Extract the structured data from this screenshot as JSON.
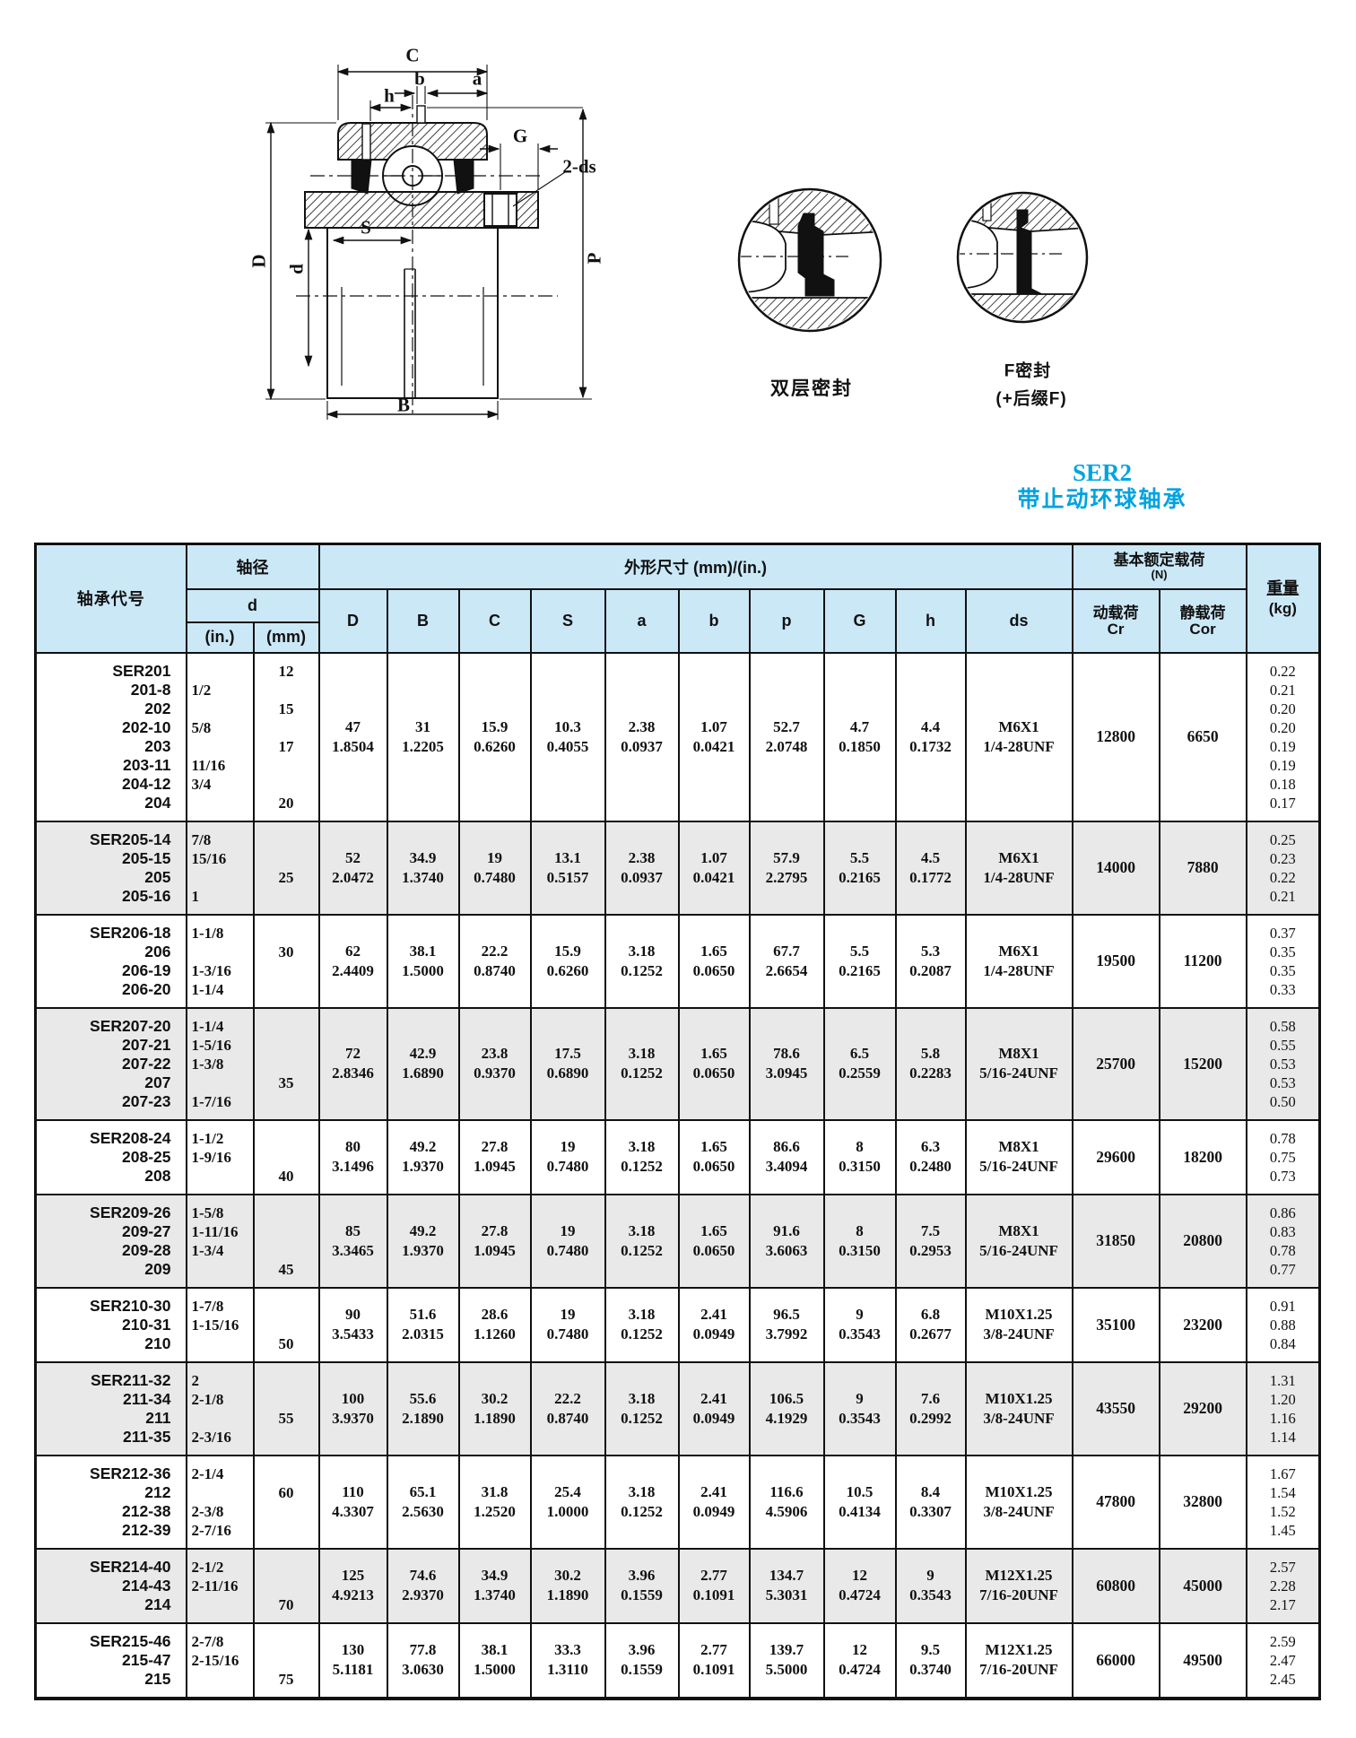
{
  "title": {
    "line1": "SER2",
    "line2": "带止动环球轴承",
    "color": "#00a3e0"
  },
  "drawing": {
    "labels": {
      "C": "C",
      "b": "b",
      "a": "a",
      "h": "h",
      "G": "G",
      "ds2": "2-ds",
      "D": "D",
      "d": "d",
      "S": "S",
      "P": "P",
      "B": "B"
    },
    "detail1_caption": "双层密封",
    "detail2_caption_line1": "F密封",
    "detail2_caption_line2": "(+后缀F)"
  },
  "table": {
    "header": {
      "bearing_code": "轴承代号",
      "shaft_dia": "轴径",
      "d": "d",
      "in": "(in.)",
      "mm": "(mm)",
      "dims": "外形尺寸 (mm)/(in.)",
      "dim_cols": [
        "D",
        "B",
        "C",
        "S",
        "a",
        "b",
        "p",
        "G",
        "h",
        "ds"
      ],
      "load_line1": "基本额定载荷",
      "load_line2": "(N)",
      "cr_line1": "动载荷",
      "cr_line2": "Cr",
      "cor_line1": "静载荷",
      "cor_line2": "Cor",
      "weight_line1": "重量",
      "weight_line2": "(kg)"
    },
    "dim_order": [
      "D",
      "B",
      "C",
      "S",
      "a",
      "b",
      "p",
      "G",
      "h",
      "ds"
    ],
    "groups": [
      {
        "shaded": false,
        "codes": [
          "SER201",
          "201-8",
          "202",
          "202-10",
          "203",
          "203-11",
          "204-12",
          "204"
        ],
        "inches": [
          "",
          "1/2",
          "",
          "5/8",
          "",
          "11/16",
          "3/4",
          ""
        ],
        "mm": [
          "12",
          "",
          "15",
          "",
          "17",
          "",
          "",
          "20"
        ],
        "dims": {
          "D": [
            "47",
            "1.8504"
          ],
          "B": [
            "31",
            "1.2205"
          ],
          "C": [
            "15.9",
            "0.6260"
          ],
          "S": [
            "10.3",
            "0.4055"
          ],
          "a": [
            "2.38",
            "0.0937"
          ],
          "b": [
            "1.07",
            "0.0421"
          ],
          "p": [
            "52.7",
            "2.0748"
          ],
          "G": [
            "4.7",
            "0.1850"
          ],
          "h": [
            "4.4",
            "0.1732"
          ],
          "ds": [
            "M6X1",
            "1/4-28UNF"
          ]
        },
        "cr": "12800",
        "cor": "6650",
        "weights": [
          "0.22",
          "0.21",
          "0.20",
          "0.20",
          "0.19",
          "0.19",
          "0.18",
          "0.17"
        ]
      },
      {
        "shaded": true,
        "codes": [
          "SER205-14",
          "205-15",
          "205",
          "205-16"
        ],
        "inches": [
          "7/8",
          "15/16",
          "",
          "1"
        ],
        "mm": [
          "",
          "",
          "25",
          ""
        ],
        "dims": {
          "D": [
            "52",
            "2.0472"
          ],
          "B": [
            "34.9",
            "1.3740"
          ],
          "C": [
            "19",
            "0.7480"
          ],
          "S": [
            "13.1",
            "0.5157"
          ],
          "a": [
            "2.38",
            "0.0937"
          ],
          "b": [
            "1.07",
            "0.0421"
          ],
          "p": [
            "57.9",
            "2.2795"
          ],
          "G": [
            "5.5",
            "0.2165"
          ],
          "h": [
            "4.5",
            "0.1772"
          ],
          "ds": [
            "M6X1",
            "1/4-28UNF"
          ]
        },
        "cr": "14000",
        "cor": "7880",
        "weights": [
          "0.25",
          "0.23",
          "0.22",
          "0.21"
        ]
      },
      {
        "shaded": false,
        "codes": [
          "SER206-18",
          "206",
          "206-19",
          "206-20"
        ],
        "inches": [
          "1-1/8",
          "",
          "1-3/16",
          "1-1/4"
        ],
        "mm": [
          "",
          "30",
          "",
          ""
        ],
        "dims": {
          "D": [
            "62",
            "2.4409"
          ],
          "B": [
            "38.1",
            "1.5000"
          ],
          "C": [
            "22.2",
            "0.8740"
          ],
          "S": [
            "15.9",
            "0.6260"
          ],
          "a": [
            "3.18",
            "0.1252"
          ],
          "b": [
            "1.65",
            "0.0650"
          ],
          "p": [
            "67.7",
            "2.6654"
          ],
          "G": [
            "5.5",
            "0.2165"
          ],
          "h": [
            "5.3",
            "0.2087"
          ],
          "ds": [
            "M6X1",
            "1/4-28UNF"
          ]
        },
        "cr": "19500",
        "cor": "11200",
        "weights": [
          "0.37",
          "0.35",
          "0.35",
          "0.33"
        ]
      },
      {
        "shaded": true,
        "codes": [
          "SER207-20",
          "207-21",
          "207-22",
          "207",
          "207-23"
        ],
        "inches": [
          "1-1/4",
          "1-5/16",
          "1-3/8",
          "",
          "1-7/16"
        ],
        "mm": [
          "",
          "",
          "",
          "35",
          ""
        ],
        "dims": {
          "D": [
            "72",
            "2.8346"
          ],
          "B": [
            "42.9",
            "1.6890"
          ],
          "C": [
            "23.8",
            "0.9370"
          ],
          "S": [
            "17.5",
            "0.6890"
          ],
          "a": [
            "3.18",
            "0.1252"
          ],
          "b": [
            "1.65",
            "0.0650"
          ],
          "p": [
            "78.6",
            "3.0945"
          ],
          "G": [
            "6.5",
            "0.2559"
          ],
          "h": [
            "5.8",
            "0.2283"
          ],
          "ds": [
            "M8X1",
            "5/16-24UNF"
          ]
        },
        "cr": "25700",
        "cor": "15200",
        "weights": [
          "0.58",
          "0.55",
          "0.53",
          "0.53",
          "0.50"
        ]
      },
      {
        "shaded": false,
        "codes": [
          "SER208-24",
          "208-25",
          "208"
        ],
        "inches": [
          "1-1/2",
          "1-9/16",
          ""
        ],
        "mm": [
          "",
          "",
          "40"
        ],
        "dims": {
          "D": [
            "80",
            "3.1496"
          ],
          "B": [
            "49.2",
            "1.9370"
          ],
          "C": [
            "27.8",
            "1.0945"
          ],
          "S": [
            "19",
            "0.7480"
          ],
          "a": [
            "3.18",
            "0.1252"
          ],
          "b": [
            "1.65",
            "0.0650"
          ],
          "p": [
            "86.6",
            "3.4094"
          ],
          "G": [
            "8",
            "0.3150"
          ],
          "h": [
            "6.3",
            "0.2480"
          ],
          "ds": [
            "M8X1",
            "5/16-24UNF"
          ]
        },
        "cr": "29600",
        "cor": "18200",
        "weights": [
          "0.78",
          "0.75",
          "0.73"
        ]
      },
      {
        "shaded": true,
        "codes": [
          "SER209-26",
          "209-27",
          "209-28",
          "209"
        ],
        "inches": [
          "1-5/8",
          "1-11/16",
          "1-3/4",
          ""
        ],
        "mm": [
          "",
          "",
          "",
          "45"
        ],
        "dims": {
          "D": [
            "85",
            "3.3465"
          ],
          "B": [
            "49.2",
            "1.9370"
          ],
          "C": [
            "27.8",
            "1.0945"
          ],
          "S": [
            "19",
            "0.7480"
          ],
          "a": [
            "3.18",
            "0.1252"
          ],
          "b": [
            "1.65",
            "0.0650"
          ],
          "p": [
            "91.6",
            "3.6063"
          ],
          "G": [
            "8",
            "0.3150"
          ],
          "h": [
            "7.5",
            "0.2953"
          ],
          "ds": [
            "M8X1",
            "5/16-24UNF"
          ]
        },
        "cr": "31850",
        "cor": "20800",
        "weights": [
          "0.86",
          "0.83",
          "0.78",
          "0.77"
        ]
      },
      {
        "shaded": false,
        "codes": [
          "SER210-30",
          "210-31",
          "210"
        ],
        "inches": [
          "1-7/8",
          "1-15/16",
          ""
        ],
        "mm": [
          "",
          "",
          "50"
        ],
        "dims": {
          "D": [
            "90",
            "3.5433"
          ],
          "B": [
            "51.6",
            "2.0315"
          ],
          "C": [
            "28.6",
            "1.1260"
          ],
          "S": [
            "19",
            "0.7480"
          ],
          "a": [
            "3.18",
            "0.1252"
          ],
          "b": [
            "2.41",
            "0.0949"
          ],
          "p": [
            "96.5",
            "3.7992"
          ],
          "G": [
            "9",
            "0.3543"
          ],
          "h": [
            "6.8",
            "0.2677"
          ],
          "ds": [
            "M10X1.25",
            "3/8-24UNF"
          ]
        },
        "cr": "35100",
        "cor": "23200",
        "weights": [
          "0.91",
          "0.88",
          "0.84"
        ]
      },
      {
        "shaded": true,
        "codes": [
          "SER211-32",
          "211-34",
          "211",
          "211-35"
        ],
        "inches": [
          "2",
          "2-1/8",
          "",
          "2-3/16"
        ],
        "mm": [
          "",
          "",
          "55",
          ""
        ],
        "dims": {
          "D": [
            "100",
            "3.9370"
          ],
          "B": [
            "55.6",
            "2.1890"
          ],
          "C": [
            "30.2",
            "1.1890"
          ],
          "S": [
            "22.2",
            "0.8740"
          ],
          "a": [
            "3.18",
            "0.1252"
          ],
          "b": [
            "2.41",
            "0.0949"
          ],
          "p": [
            "106.5",
            "4.1929"
          ],
          "G": [
            "9",
            "0.3543"
          ],
          "h": [
            "7.6",
            "0.2992"
          ],
          "ds": [
            "M10X1.25",
            "3/8-24UNF"
          ]
        },
        "cr": "43550",
        "cor": "29200",
        "weights": [
          "1.31",
          "1.20",
          "1.16",
          "1.14"
        ]
      },
      {
        "shaded": false,
        "codes": [
          "SER212-36",
          "212",
          "212-38",
          "212-39"
        ],
        "inches": [
          "2-1/4",
          "",
          "2-3/8",
          "2-7/16"
        ],
        "mm": [
          "",
          "60",
          "",
          ""
        ],
        "dims": {
          "D": [
            "110",
            "4.3307"
          ],
          "B": [
            "65.1",
            "2.5630"
          ],
          "C": [
            "31.8",
            "1.2520"
          ],
          "S": [
            "25.4",
            "1.0000"
          ],
          "a": [
            "3.18",
            "0.1252"
          ],
          "b": [
            "2.41",
            "0.0949"
          ],
          "p": [
            "116.6",
            "4.5906"
          ],
          "G": [
            "10.5",
            "0.4134"
          ],
          "h": [
            "8.4",
            "0.3307"
          ],
          "ds": [
            "M10X1.25",
            "3/8-24UNF"
          ]
        },
        "cr": "47800",
        "cor": "32800",
        "weights": [
          "1.67",
          "1.54",
          "1.52",
          "1.45"
        ]
      },
      {
        "shaded": true,
        "codes": [
          "SER214-40",
          "214-43",
          "214"
        ],
        "inches": [
          "2-1/2",
          "2-11/16",
          ""
        ],
        "mm": [
          "",
          "",
          "70"
        ],
        "dims": {
          "D": [
            "125",
            "4.9213"
          ],
          "B": [
            "74.6",
            "2.9370"
          ],
          "C": [
            "34.9",
            "1.3740"
          ],
          "S": [
            "30.2",
            "1.1890"
          ],
          "a": [
            "3.96",
            "0.1559"
          ],
          "b": [
            "2.77",
            "0.1091"
          ],
          "p": [
            "134.7",
            "5.3031"
          ],
          "G": [
            "12",
            "0.4724"
          ],
          "h": [
            "9",
            "0.3543"
          ],
          "ds": [
            "M12X1.25",
            "7/16-20UNF"
          ]
        },
        "cr": "60800",
        "cor": "45000",
        "weights": [
          "2.57",
          "2.28",
          "2.17"
        ]
      },
      {
        "shaded": false,
        "codes": [
          "SER215-46",
          "215-47",
          "215"
        ],
        "inches": [
          "2-7/8",
          "2-15/16",
          ""
        ],
        "mm": [
          "",
          "",
          "75"
        ],
        "dims": {
          "D": [
            "130",
            "5.1181"
          ],
          "B": [
            "77.8",
            "3.0630"
          ],
          "C": [
            "38.1",
            "1.5000"
          ],
          "S": [
            "33.3",
            "1.3110"
          ],
          "a": [
            "3.96",
            "0.1559"
          ],
          "b": [
            "2.77",
            "0.1091"
          ],
          "p": [
            "139.7",
            "5.5000"
          ],
          "G": [
            "12",
            "0.4724"
          ],
          "h": [
            "9.5",
            "0.3740"
          ],
          "ds": [
            "M12X1.25",
            "7/16-20UNF"
          ]
        },
        "cr": "66000",
        "cor": "49500",
        "weights": [
          "2.59",
          "2.47",
          "2.45"
        ]
      }
    ]
  }
}
